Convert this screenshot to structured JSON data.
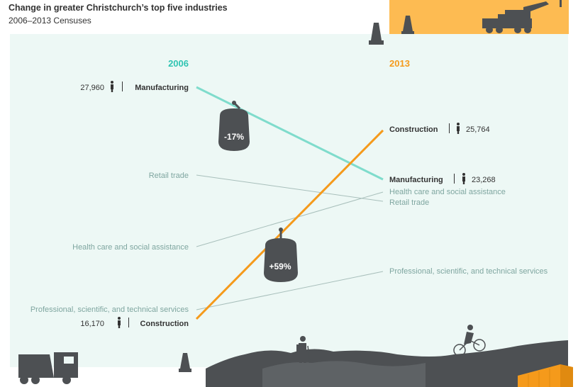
{
  "title": "Change in greater Christchurch’s top five industries",
  "subtitle": "2006–2013 Censuses",
  "chart_data": {
    "type": "slope",
    "x": [
      "2006",
      "2013"
    ],
    "series": [
      {
        "name": "Manufacturing",
        "values": [
          27960,
          23268
        ],
        "highlight": true,
        "change_label": "-17%",
        "color": "#7fdccc"
      },
      {
        "name": "Construction",
        "values": [
          16170,
          25764
        ],
        "highlight": true,
        "change_label": "+59%",
        "color": "#f59a1b"
      },
      {
        "name": "Retail trade",
        "values": [
          null,
          null
        ],
        "highlight": false
      },
      {
        "name": "Health care and social assistance",
        "values": [
          null,
          null
        ],
        "highlight": false
      },
      {
        "name": "Professional, scientific, and technical services",
        "values": [
          null,
          null
        ],
        "highlight": false
      }
    ],
    "ylim": [
      14000,
      30000
    ],
    "colors": {
      "year_2006": "#2fc4b2",
      "year_2013": "#f59a1b",
      "muted_text": "#7fa6a0",
      "muted_line": "#a8bfbb",
      "dark": "#4d5053",
      "panel_bg": "#edf8f5"
    }
  },
  "labels": {
    "y2006": "2006",
    "y2013": "2013",
    "left_manufacturing_value": "27,960",
    "left_manufacturing_name": "Manufacturing",
    "left_construction_value": "16,170",
    "left_construction_name": "Construction",
    "left_retail": "Retail trade",
    "left_health": "Health care and social assistance",
    "left_professional": "Professional, scientific, and technical services",
    "right_construction_name": "Construction",
    "right_construction_value": "25,764",
    "right_manufacturing_name": "Manufacturing",
    "right_manufacturing_value": "23,268",
    "right_health": "Health care and social assistance",
    "right_retail": "Retail trade",
    "right_professional": "Professional, scientific, and technical services",
    "badge_manufacturing": "-17%",
    "badge_construction": "+59%"
  },
  "icons": [
    "person-icon",
    "traffic-cone-icon",
    "crane-truck-icon",
    "dump-truck-icon",
    "hiker-icon",
    "cyclist-icon",
    "gondola-icon",
    "shipping-container-icon",
    "hills-icon"
  ]
}
